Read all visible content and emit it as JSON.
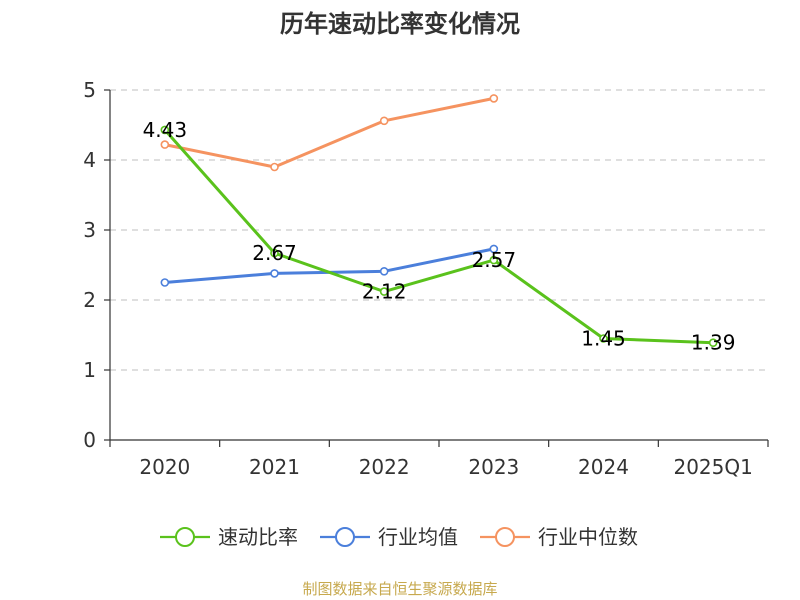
{
  "chart_data": {
    "type": "line",
    "title": "历年速动比率变化情况",
    "categories": [
      "2020",
      "2021",
      "2022",
      "2023",
      "2024",
      "2025Q1"
    ],
    "ylim": [
      0,
      5
    ],
    "yticks": [
      0,
      1,
      2,
      3,
      4,
      5
    ],
    "xlabel": "",
    "ylabel": "",
    "grid": true,
    "legend_position": "bottom",
    "series": [
      {
        "name": "速动比率",
        "color": "#5ac21c",
        "values": [
          4.43,
          2.67,
          2.12,
          2.57,
          1.45,
          1.39
        ],
        "labels": [
          "4.43",
          "2.67",
          "2.12",
          "2.57",
          "1.45",
          "1.39"
        ]
      },
      {
        "name": "行业均值",
        "color": "#4b7fdb",
        "values": [
          2.25,
          2.38,
          2.41,
          2.73,
          null,
          null
        ]
      },
      {
        "name": "行业中位数",
        "color": "#f59360",
        "values": [
          4.22,
          3.9,
          4.56,
          4.88,
          null,
          null
        ]
      }
    ]
  },
  "source": "制图数据来自恒生聚源数据库"
}
